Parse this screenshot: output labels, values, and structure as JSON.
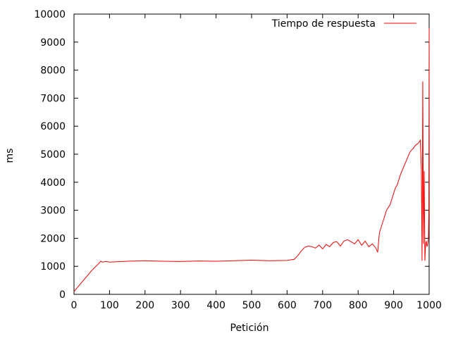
{
  "chart_data": {
    "type": "line",
    "title": "",
    "xlabel": "Petición",
    "ylabel": "ms",
    "xlim": [
      0,
      1000
    ],
    "ylim": [
      0,
      10000
    ],
    "xticks": [
      0,
      100,
      200,
      300,
      400,
      500,
      600,
      700,
      800,
      900,
      1000
    ],
    "yticks": [
      0,
      1000,
      2000,
      3000,
      4000,
      5000,
      6000,
      7000,
      8000,
      9000,
      10000
    ],
    "xtick_labels": [
      "0",
      "100",
      "200",
      "300",
      "400",
      "500",
      "600",
      "700",
      "800",
      "900",
      "1000"
    ],
    "ytick_labels": [
      "0",
      "1000",
      "2000",
      "3000",
      "4000",
      "5000",
      "6000",
      "7000",
      "8000",
      "9000",
      "10000"
    ],
    "grid": false,
    "legend_position": "top-right",
    "series": [
      {
        "name": "Tiempo de respuesta",
        "color": "#ff0000",
        "x": [
          0,
          10,
          20,
          30,
          40,
          50,
          60,
          70,
          75,
          80,
          90,
          100,
          150,
          200,
          250,
          300,
          350,
          400,
          450,
          500,
          550,
          600,
          610,
          620,
          630,
          640,
          650,
          660,
          670,
          680,
          690,
          700,
          710,
          720,
          730,
          740,
          750,
          760,
          770,
          780,
          790,
          800,
          810,
          820,
          830,
          840,
          850,
          855,
          860,
          865,
          870,
          875,
          880,
          890,
          900,
          905,
          910,
          915,
          920,
          930,
          940,
          945,
          950,
          955,
          960,
          965,
          970,
          975,
          978,
          980,
          982,
          984,
          986,
          988,
          990,
          992,
          994,
          996,
          998,
          999,
          1000
        ],
        "y": [
          100,
          250,
          400,
          550,
          700,
          850,
          980,
          1100,
          1180,
          1150,
          1170,
          1150,
          1180,
          1200,
          1180,
          1170,
          1190,
          1180,
          1200,
          1220,
          1200,
          1210,
          1230,
          1250,
          1380,
          1550,
          1680,
          1720,
          1700,
          1650,
          1760,
          1620,
          1780,
          1700,
          1850,
          1880,
          1720,
          1900,
          1950,
          1880,
          1800,
          1950,
          1750,
          1900,
          1700,
          1800,
          1650,
          1500,
          2200,
          2400,
          2600,
          2800,
          3000,
          3200,
          3600,
          3800,
          3900,
          4100,
          4300,
          4600,
          4900,
          5050,
          5150,
          5200,
          5300,
          5350,
          5400,
          5500,
          4500,
          1200,
          7600,
          1800,
          4400,
          1200,
          1800,
          1900,
          1700,
          1800,
          2000,
          3000,
          9500
        ]
      }
    ]
  }
}
